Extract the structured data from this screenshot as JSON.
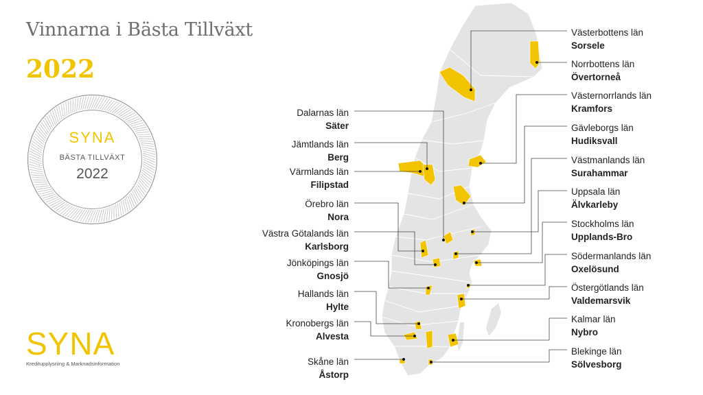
{
  "header": {
    "title": "Vinnarna i Bästa Tillväxt",
    "year": "2022"
  },
  "seal": {
    "brand": "SYNA",
    "subtitle": "BÄSTA TILLVÄXT",
    "year": "2022"
  },
  "logo": {
    "word": "SYNA",
    "tagline": "Kreditupplysning & Marknadsinformation"
  },
  "colors": {
    "accent": "#f2c400",
    "map": "#e4e4e4",
    "text": "#222222",
    "title": "#6e6e6e"
  },
  "winners_left": [
    {
      "region": "Dalarnas län",
      "municipality": "Säter"
    },
    {
      "region": "Jämtlands län",
      "municipality": "Berg"
    },
    {
      "region": "Värmlands län",
      "municipality": "Filipstad"
    },
    {
      "region": "Örebro län",
      "municipality": "Nora"
    },
    {
      "region": "Västra Götalands län",
      "municipality": "Karlsborg"
    },
    {
      "region": "Jönköpings län",
      "municipality": "Gnosjö"
    },
    {
      "region": "Hallands län",
      "municipality": "Hylte"
    },
    {
      "region": "Kronobergs län",
      "municipality": "Alvesta"
    },
    {
      "region": "Skåne län",
      "municipality": "Åstorp"
    }
  ],
  "winners_right": [
    {
      "region": "Västerbottens län",
      "municipality": "Sorsele"
    },
    {
      "region": "Norrbottens län",
      "municipality": "Övertorneå"
    },
    {
      "region": "Västernorrlands län",
      "municipality": "Kramfors"
    },
    {
      "region": "Gävleborgs län",
      "municipality": "Hudiksvall"
    },
    {
      "region": "Västmanlands län",
      "municipality": "Surahammar"
    },
    {
      "region": "Uppsala län",
      "municipality": "Älvkarleby"
    },
    {
      "region": "Stockholms län",
      "municipality": "Upplands-Bro"
    },
    {
      "region": "Södermanlands län",
      "municipality": "Oxelösund"
    },
    {
      "region": "Östergötlands län",
      "municipality": "Valdemarsvik"
    },
    {
      "region": "Kalmar län",
      "municipality": "Nybro"
    },
    {
      "region": "Blekinge län",
      "municipality": "Sölvesborg"
    }
  ]
}
